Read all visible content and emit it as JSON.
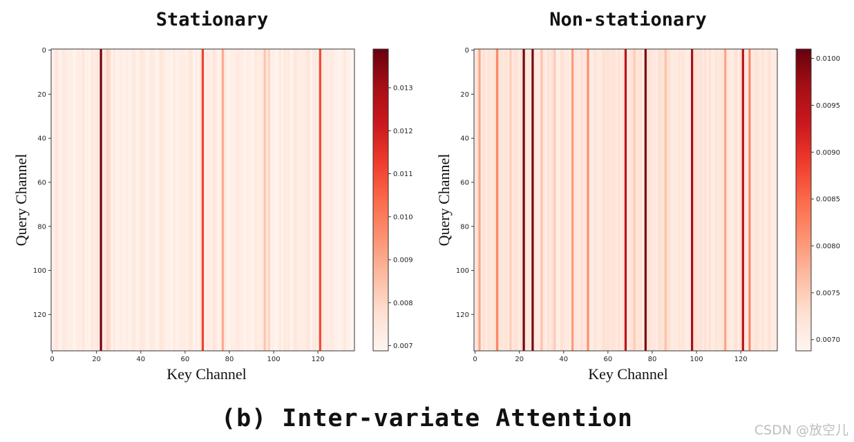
{
  "chart_data": [
    {
      "type": "heatmap",
      "title": "Stationary",
      "xlabel": "Key Channel",
      "ylabel": "Query Channel",
      "n_key_channels": 137,
      "n_query_channels": 137,
      "x_ticks": [
        0,
        20,
        40,
        60,
        80,
        100,
        120
      ],
      "y_ticks": [
        0,
        20,
        40,
        60,
        80,
        100,
        120
      ],
      "colormap": "Reds",
      "vmin": 0.00688,
      "vmax": 0.0139,
      "colorbar_ticks": [
        0.007,
        0.008,
        0.009,
        0.01,
        0.011,
        0.012,
        0.013
      ],
      "colorbar_tick_labels": [
        "0.007",
        "0.008",
        "0.009",
        "0.010",
        "0.011",
        "0.012",
        "0.013"
      ],
      "column_baseline": 0.00718,
      "highlighted_columns": [
        {
          "key": 2,
          "value": 0.0076
        },
        {
          "key": 14,
          "value": 0.0075
        },
        {
          "key": 22,
          "value": 0.0137
        },
        {
          "key": 25,
          "value": 0.0081
        },
        {
          "key": 26,
          "value": 0.0078
        },
        {
          "key": 40,
          "value": 0.0074
        },
        {
          "key": 50,
          "value": 0.0074
        },
        {
          "key": 68,
          "value": 0.0112
        },
        {
          "key": 73,
          "value": 0.0076
        },
        {
          "key": 77,
          "value": 0.009
        },
        {
          "key": 96,
          "value": 0.0084
        },
        {
          "key": 98,
          "value": 0.008
        },
        {
          "key": 110,
          "value": 0.0075
        },
        {
          "key": 121,
          "value": 0.011
        }
      ]
    },
    {
      "type": "heatmap",
      "title": "Non-stationary",
      "xlabel": "Key Channel",
      "ylabel": "Query Channel",
      "n_key_channels": 137,
      "n_query_channels": 137,
      "x_ticks": [
        0,
        20,
        40,
        60,
        80,
        100,
        120
      ],
      "y_ticks": [
        0,
        20,
        40,
        60,
        80,
        100,
        120
      ],
      "colormap": "Reds",
      "vmin": 0.00688,
      "vmax": 0.0101,
      "colorbar_ticks": [
        0.007,
        0.0075,
        0.008,
        0.0085,
        0.009,
        0.0095,
        0.01
      ],
      "colorbar_tick_labels": [
        "0.0070",
        "0.0075",
        "0.0080",
        "0.0085",
        "0.0090",
        "0.0095",
        "0.0100"
      ],
      "column_baseline": 0.00715,
      "highlighted_columns": [
        {
          "key": 2,
          "value": 0.0079
        },
        {
          "key": 10,
          "value": 0.0082
        },
        {
          "key": 16,
          "value": 0.0075
        },
        {
          "key": 22,
          "value": 0.01
        },
        {
          "key": 26,
          "value": 0.01
        },
        {
          "key": 30,
          "value": 0.0076
        },
        {
          "key": 36,
          "value": 0.0075
        },
        {
          "key": 44,
          "value": 0.008
        },
        {
          "key": 51,
          "value": 0.0081
        },
        {
          "key": 68,
          "value": 0.0095
        },
        {
          "key": 72,
          "value": 0.0075
        },
        {
          "key": 77,
          "value": 0.01
        },
        {
          "key": 86,
          "value": 0.0076
        },
        {
          "key": 98,
          "value": 0.0097
        },
        {
          "key": 113,
          "value": 0.0079
        },
        {
          "key": 121,
          "value": 0.0095
        },
        {
          "key": 124,
          "value": 0.0082
        }
      ]
    }
  ],
  "caption": "(b) Inter-variate Attention",
  "watermark": "CSDN @放空儿"
}
